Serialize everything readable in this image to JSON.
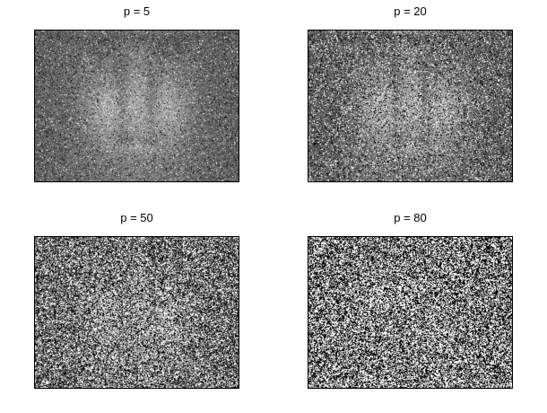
{
  "figure": {
    "panels": [
      {
        "title": "p = 5",
        "noise_percent": 5
      },
      {
        "title": "p = 20",
        "noise_percent": 20
      },
      {
        "title": "p = 50",
        "noise_percent": 50
      },
      {
        "title": "p = 80",
        "noise_percent": 80
      }
    ]
  }
}
